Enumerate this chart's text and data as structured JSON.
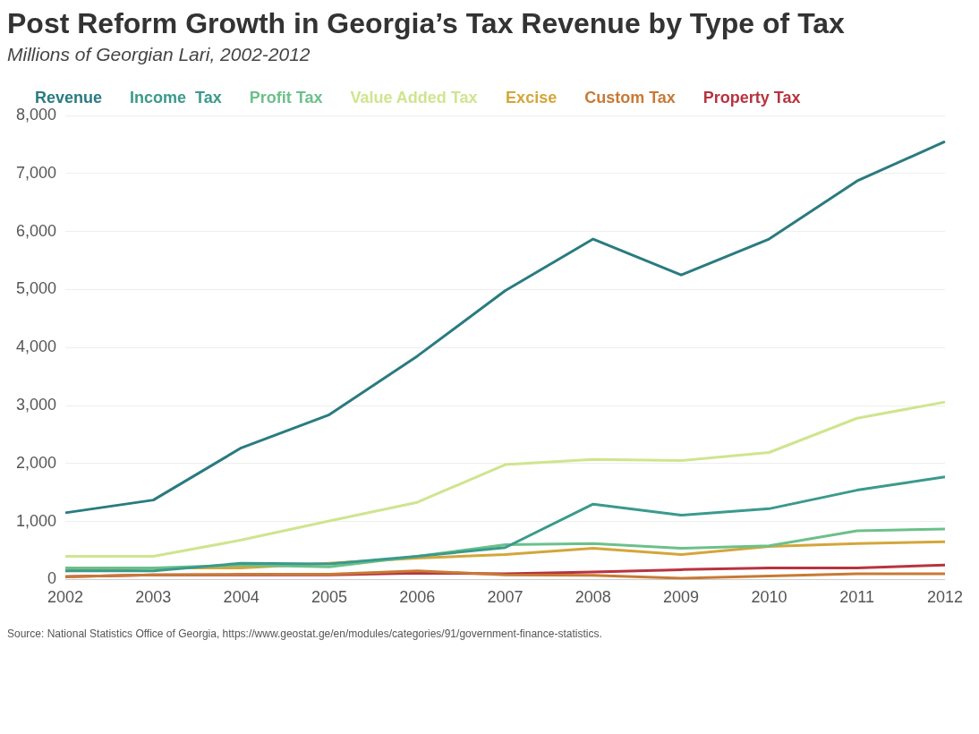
{
  "chart_data": {
    "type": "line",
    "title": "Post Reform Growth in Georgia’s Tax Revenue by Type of Tax",
    "subtitle": "Millions of Georgian Lari, 2002-2012",
    "categories": [
      "2002",
      "2003",
      "2004",
      "2005",
      "2006",
      "2007",
      "2008",
      "2009",
      "2010",
      "2011",
      "2012"
    ],
    "series": [
      {
        "name": "Revenue",
        "color": "#2a7b80",
        "values": [
          1150,
          1370,
          2270,
          2840,
          3850,
          4980,
          5870,
          5250,
          5870,
          6870,
          7550
        ]
      },
      {
        "name": "Income  Tax",
        "color": "#3a9a8c",
        "values": [
          150,
          150,
          280,
          270,
          400,
          550,
          1300,
          1110,
          1220,
          1540,
          1770
        ]
      },
      {
        "name": "Profit Tax",
        "color": "#6cc08a",
        "values": [
          200,
          200,
          250,
          220,
          400,
          600,
          620,
          540,
          580,
          840,
          870
        ]
      },
      {
        "name": "Value Added Tax",
        "color": "#cfe58e",
        "values": [
          400,
          400,
          680,
          1010,
          1330,
          1980,
          2070,
          2050,
          2190,
          2780,
          3060
        ]
      },
      {
        "name": "Excise",
        "color": "#d4a63a",
        "values": [
          150,
          200,
          200,
          280,
          370,
          430,
          540,
          430,
          570,
          620,
          650
        ]
      },
      {
        "name": "Custom Tax",
        "color": "#c87a35",
        "values": [
          50,
          80,
          90,
          90,
          150,
          80,
          70,
          20,
          60,
          100,
          100
        ]
      },
      {
        "name": "Property Tax",
        "color": "#b8333f",
        "values": [
          50,
          80,
          80,
          80,
          110,
          100,
          130,
          170,
          200,
          200,
          250
        ]
      }
    ],
    "ylim": [
      0,
      8000
    ],
    "yticks": [
      {
        "value": 0,
        "label": "0"
      },
      {
        "value": 1000,
        "label": "1,000"
      },
      {
        "value": 2000,
        "label": "2,000"
      },
      {
        "value": 3000,
        "label": "3,000"
      },
      {
        "value": 4000,
        "label": "4,000"
      },
      {
        "value": 5000,
        "label": "5,000"
      },
      {
        "value": 6000,
        "label": "6,000"
      },
      {
        "value": 7000,
        "label": "7,000"
      },
      {
        "value": 8000,
        "label": "8,000"
      }
    ],
    "grid": "y",
    "legend": "top left",
    "marker": "none",
    "line_style": "solid",
    "annotations": [
      "Source: National Statistics Office of Georgia, https://www.geostat.ge/en/modules/categories/91/government-finance-statistics."
    ]
  }
}
